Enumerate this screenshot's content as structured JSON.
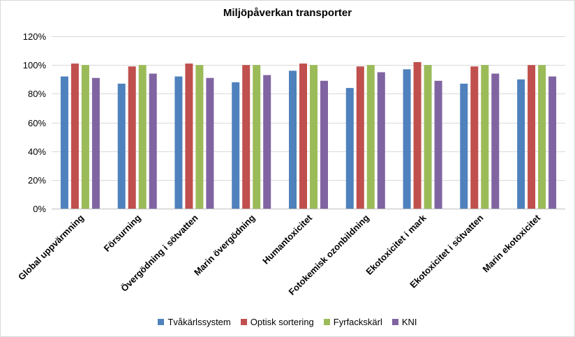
{
  "chart_data": {
    "type": "bar",
    "title": "Miljöpåverkan transporter",
    "xlabel": "",
    "ylabel": "",
    "ylim": [
      0,
      1.2
    ],
    "y_ticks": [
      "0%",
      "20%",
      "40%",
      "60%",
      "80%",
      "100%",
      "120%"
    ],
    "y_tick_values": [
      0,
      0.2,
      0.4,
      0.6,
      0.8,
      1.0,
      1.2
    ],
    "grid": "horizontal",
    "legend": "bottom",
    "categories": [
      "Global uppvärmning",
      "Försurning",
      "Övergödning i sötvatten",
      "Marin övergödning",
      "Humantoxicitet",
      "Fotokemisk ozonbildning",
      "Ekotoxicitet i mark",
      "Ekotoxicitet i sötvatten",
      "Marin ekotoxicitet"
    ],
    "series": [
      {
        "name": "Tvåkärlssystem",
        "color": "#4f81bd",
        "values": [
          0.92,
          0.87,
          0.92,
          0.88,
          0.96,
          0.84,
          0.97,
          0.87,
          0.9
        ]
      },
      {
        "name": "Optisk sortering",
        "color": "#c0504d",
        "values": [
          1.01,
          0.99,
          1.01,
          1.0,
          1.01,
          0.99,
          1.02,
          0.99,
          1.0
        ]
      },
      {
        "name": "Fyrfackskärl",
        "color": "#9bbb59",
        "values": [
          1.0,
          1.0,
          1.0,
          1.0,
          1.0,
          1.0,
          1.0,
          1.0,
          1.0
        ]
      },
      {
        "name": "KNI",
        "color": "#8064a2",
        "values": [
          0.91,
          0.94,
          0.91,
          0.93,
          0.89,
          0.95,
          0.89,
          0.94,
          0.92
        ]
      }
    ]
  }
}
